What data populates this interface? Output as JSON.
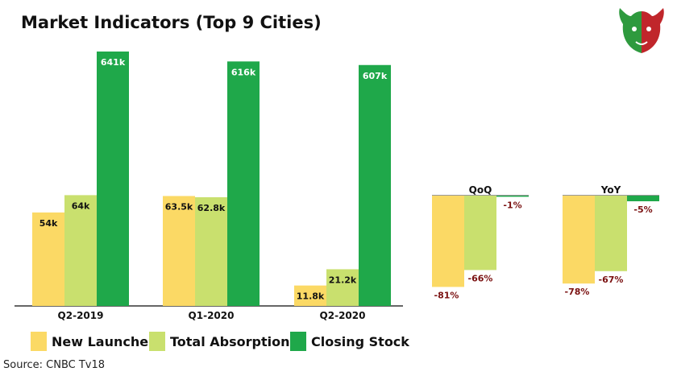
{
  "title": "Market Indicators (Top 9 Cities)",
  "source": "Source: CNBC Tv18",
  "colors": {
    "new_launches": "#fbd965",
    "total_absorption": "#c9e06e",
    "closing_stock": "#1fa84a",
    "change_label": "#7a1010",
    "axis": "#333333"
  },
  "legend": [
    {
      "name": "New Launches",
      "color": "#fbd965"
    },
    {
      "name": "Total Absorption",
      "color": "#c9e06e"
    },
    {
      "name": "Closing Stock",
      "color": "#1fa84a"
    }
  ],
  "chart_data": [
    {
      "type": "bar",
      "categories": [
        "Q2-2019",
        "Q1-2020",
        "Q2-2020"
      ],
      "series": [
        {
          "name": "New Launches",
          "values": [
            54,
            63.5,
            11.8
          ],
          "labels": [
            "54k",
            "63.5k",
            "11.8k"
          ]
        },
        {
          "name": "Total Absorption",
          "values": [
            64,
            62.8,
            21.2
          ],
          "labels": [
            "64k",
            "62.8k",
            "21.2k"
          ]
        },
        {
          "name": "Closing Stock",
          "values": [
            641,
            616,
            607
          ],
          "labels": [
            "641k",
            "616k",
            "607k"
          ]
        }
      ],
      "note": "broken scale: closing stock bars drawn on compressed scale"
    },
    {
      "type": "bar",
      "categories": [
        "QoQ",
        "YoY"
      ],
      "series": [
        {
          "name": "New Launches",
          "values": [
            -81,
            -78
          ],
          "labels": [
            "-81%",
            "-78%"
          ]
        },
        {
          "name": "Total Absorption",
          "values": [
            -66,
            -67
          ],
          "labels": [
            "-66%",
            "-67%"
          ]
        },
        {
          "name": "Closing Stock",
          "values": [
            -1,
            -5
          ],
          "labels": [
            "-1%",
            "-5%"
          ]
        }
      ]
    }
  ]
}
